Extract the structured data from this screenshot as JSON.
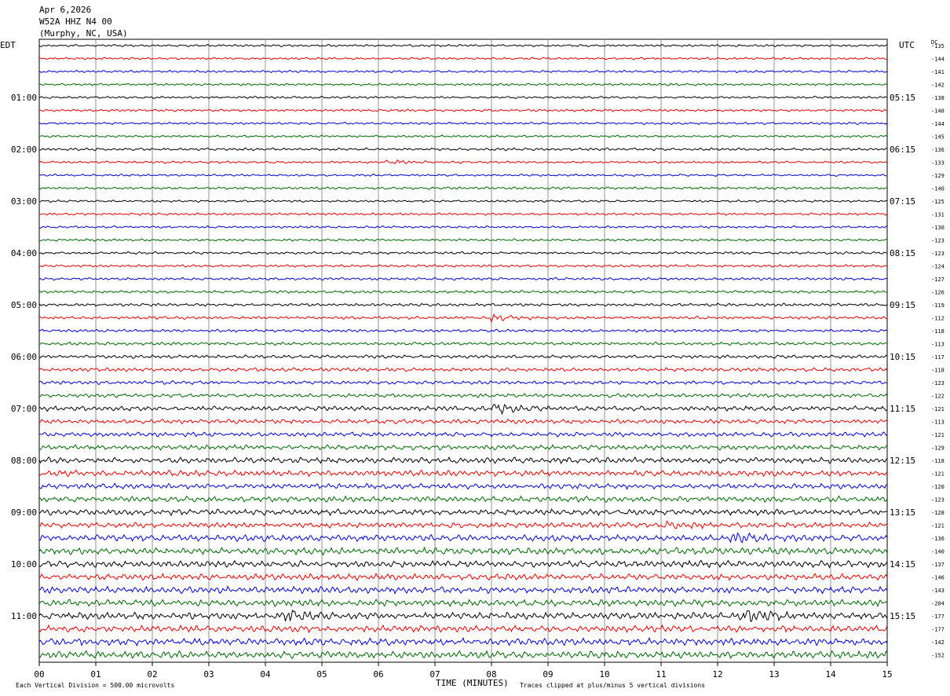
{
  "header": {
    "date": "Apr 6,2026",
    "station": "W52A HHZ N4 00",
    "location": "(Murphy, NC, USA)"
  },
  "axis": {
    "left_label": "EDT",
    "right_label": "UTC",
    "dc_label": "DC",
    "xlabel": "TIME (MINUTES)",
    "xticks": [
      "00",
      "01",
      "02",
      "03",
      "04",
      "05",
      "06",
      "07",
      "08",
      "09",
      "10",
      "11",
      "12",
      "13",
      "14",
      "15"
    ]
  },
  "footer": {
    "scale_note": "Each Vertical Division =  500.00 microvolts",
    "clip_note": "Traces clipped at plus/minus 5 vertical divisions"
  },
  "colors": {
    "trace_cycle": [
      "#000000",
      "#dd0000",
      "#0000cc",
      "#006600"
    ],
    "grid": "#000000"
  },
  "chart_data": {
    "type": "helicorder",
    "minutes_per_line": 15,
    "x_range_minutes": [
      0,
      15
    ],
    "edt_hour_labels": [
      "01:00",
      "02:00",
      "03:00",
      "04:00",
      "05:00",
      "06:00",
      "07:00",
      "08:00",
      "09:00",
      "10:00",
      "11:00"
    ],
    "utc_hour_labels": [
      "05:15",
      "06:15",
      "07:15",
      "08:15",
      "09:15",
      "10:15",
      "11:15",
      "12:15",
      "13:15",
      "14:15",
      "15:15"
    ],
    "first_labeled_line": 4,
    "lines_per_hour": 4,
    "dc_offsets": [
      -135,
      -144,
      -141,
      -142,
      -138,
      -148,
      -144,
      -145,
      -136,
      -133,
      -129,
      -140,
      -125,
      -131,
      -130,
      -123,
      -123,
      -124,
      -127,
      -126,
      -119,
      -112,
      -118,
      -113,
      -117,
      -118,
      -123,
      -122,
      -121,
      -113,
      -121,
      -129,
      -118,
      -121,
      -120,
      -123,
      -128,
      -121,
      -136,
      -140,
      -137,
      -146,
      -143,
      -204,
      -177,
      -177,
      -142,
      -152
    ],
    "trace_activity": [
      1,
      1,
      1,
      1,
      1,
      1,
      1,
      1,
      1.2,
      1,
      1,
      1.1,
      1,
      1,
      1,
      1.1,
      1.1,
      1.1,
      1.2,
      1.2,
      1.3,
      1.3,
      1.3,
      1.4,
      1.5,
      1.6,
      1.6,
      1.7,
      2.2,
      2,
      2,
      2.2,
      2.6,
      2.6,
      2.4,
      2.6,
      2.6,
      2.4,
      2.8,
      3,
      3,
      2.8,
      3,
      3,
      3.2,
      3,
      3.2,
      3.2
    ],
    "events": [
      {
        "line": 9,
        "minute": 6.2,
        "amplitude": 2
      },
      {
        "line": 21,
        "minute": 8.0,
        "amplitude": 3
      },
      {
        "line": 28,
        "minute": 8.1,
        "amplitude": 4
      },
      {
        "line": 37,
        "minute": 11.1,
        "amplitude": 3
      },
      {
        "line": 38,
        "minute": 12.3,
        "amplitude": 4
      },
      {
        "line": 44,
        "minute": 4.4,
        "amplitude": 5
      },
      {
        "line": 44,
        "minute": 12.5,
        "amplitude": 6
      }
    ]
  }
}
